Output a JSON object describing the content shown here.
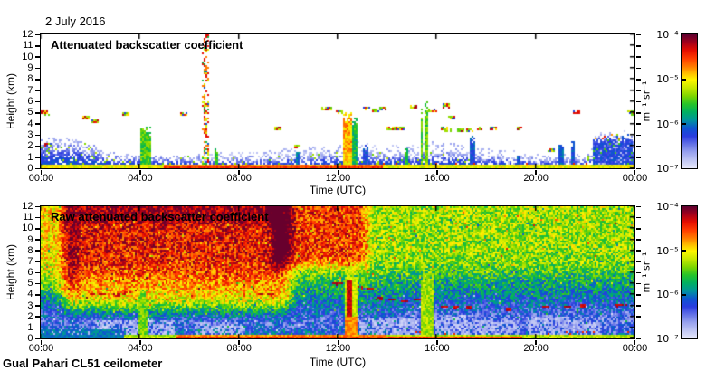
{
  "figure": {
    "date_label": "2 July 2016",
    "footer": "Gual Pahari CL51 ceilometer"
  },
  "chart_data": {
    "type": "heatmap",
    "x_axis": {
      "label": "Time (UTC)",
      "range_hours": [
        0,
        24
      ],
      "tick_labels": [
        "00:00",
        "04:00",
        "08:00",
        "12:00",
        "16:00",
        "20:00",
        "00:00"
      ]
    },
    "y_axis": {
      "label": "Height (km)",
      "range_km": [
        0,
        12
      ],
      "tick_labels": [
        "0",
        "1",
        "2",
        "3",
        "4",
        "5",
        "6",
        "7",
        "8",
        "9",
        "10",
        "11",
        "12"
      ]
    },
    "colorbar": {
      "unit": "m⁻¹ sr⁻¹",
      "scale": "log",
      "range": [
        "1e-7",
        "1e-4"
      ],
      "tick_labels": [
        "10⁻⁴",
        "10⁻⁵",
        "10⁻⁶",
        "10⁻⁷"
      ],
      "stops": [
        [
          0.0,
          "#e6e8fa"
        ],
        [
          0.06,
          "#c0c6f4"
        ],
        [
          0.12,
          "#98a2ee"
        ],
        [
          0.18,
          "#6472e6"
        ],
        [
          0.24,
          "#2a3ce0"
        ],
        [
          0.3,
          "#0d55d0"
        ],
        [
          0.36,
          "#00959d"
        ],
        [
          0.42,
          "#00b060"
        ],
        [
          0.48,
          "#27c428"
        ],
        [
          0.54,
          "#7ed600"
        ],
        [
          0.6,
          "#c8e800"
        ],
        [
          0.66,
          "#fef600"
        ],
        [
          0.7,
          "#ffc800"
        ],
        [
          0.76,
          "#ff7a00"
        ],
        [
          0.82,
          "#ff3c00"
        ],
        [
          0.88,
          "#e60d00"
        ],
        [
          0.94,
          "#a3001b"
        ],
        [
          1.0,
          "#5c0030"
        ]
      ]
    },
    "panels": [
      {
        "id": "attenuated",
        "title": "Attenuated backscatter coefficient",
        "style": "sparse",
        "seed": 42,
        "boundary_layer_top_km": [
          [
            0,
            2.35
          ],
          [
            1.3,
            2.25
          ],
          [
            2.2,
            1.8
          ],
          [
            2.6,
            1.3
          ],
          [
            3.6,
            1.05
          ],
          [
            5,
            1.0
          ],
          [
            6.4,
            0.95
          ],
          [
            7.5,
            0.9
          ],
          [
            9,
            0.95
          ],
          [
            10.2,
            1.15
          ],
          [
            11,
            1.25
          ],
          [
            12,
            1.45
          ],
          [
            13,
            1.5
          ],
          [
            13.6,
            1.3
          ],
          [
            14.6,
            1.35
          ],
          [
            15.8,
            1.5
          ],
          [
            16.8,
            1.45
          ],
          [
            17.8,
            1.1
          ],
          [
            19,
            1.0
          ],
          [
            20,
            0.8
          ],
          [
            21,
            0.85
          ],
          [
            22,
            0.9
          ],
          [
            22.4,
            1.3
          ],
          [
            22.6,
            2.7
          ],
          [
            23.5,
            2.9
          ],
          [
            24,
            2.6
          ]
        ],
        "surface": {
          "warm_interval_hours": [
            5.0,
            13.8
          ],
          "base_value": 0.6,
          "warm_value": 0.72
        },
        "plumes": [
          {
            "t0": 4.0,
            "t1": 4.45,
            "top_km": 3.6,
            "v": 0.5,
            "kind": "green"
          },
          {
            "t0": 12.25,
            "t1": 12.6,
            "top_km": 5.0,
            "v": 0.74,
            "kind": "warm"
          },
          {
            "t0": 12.6,
            "t1": 12.78,
            "top_km": 4.6,
            "v": 0.45,
            "kind": "green"
          },
          {
            "t0": 15.35,
            "t1": 15.44,
            "top_km": 5.5,
            "v": 0.5,
            "kind": "green"
          },
          {
            "t0": 15.5,
            "t1": 15.68,
            "top_km": 5.6,
            "v": 0.52,
            "kind": "green"
          },
          {
            "t0": 22.35,
            "t1": 23.95,
            "top_km": 2.85,
            "v": 0.26,
            "kind": "blue"
          }
        ],
        "rain_spike": {
          "t0": 6.48,
          "t1": 6.78,
          "core_start": 6.6,
          "top_km": 12
        },
        "columns": [
          [
            7.1,
            1.7,
            0.48
          ],
          [
            10.4,
            1.6,
            0.33
          ],
          [
            13.15,
            2.0,
            0.27
          ],
          [
            14.8,
            1.7,
            0.47
          ],
          [
            17.45,
            2.6,
            0.28
          ],
          [
            19.3,
            1.3,
            0.28
          ],
          [
            21.05,
            2.3,
            0.3
          ],
          [
            21.5,
            2.45,
            0.28
          ]
        ],
        "clouds": [
          [
            0.12,
            5.0
          ],
          [
            0.22,
            4.85
          ],
          [
            0.32,
            2.05
          ],
          [
            1.85,
            4.5
          ],
          [
            2.2,
            4.25
          ],
          [
            3.45,
            4.9
          ],
          [
            5.8,
            4.8
          ],
          [
            9.6,
            3.6
          ],
          [
            10.35,
            2.0
          ],
          [
            11.45,
            5.35
          ],
          [
            11.62,
            5.3
          ],
          [
            12.05,
            5.05
          ],
          [
            13.2,
            5.3
          ],
          [
            13.55,
            5.25
          ],
          [
            13.8,
            5.35
          ],
          [
            14.15,
            3.55
          ],
          [
            14.35,
            3.6
          ],
          [
            14.6,
            3.5
          ],
          [
            15.1,
            5.5
          ],
          [
            15.85,
            5.2,
            0.2
          ],
          [
            16.3,
            3.5
          ],
          [
            16.45,
            3.45
          ],
          [
            16.4,
            5.6
          ],
          [
            16.6,
            4.6
          ],
          [
            17.0,
            3.4
          ],
          [
            17.35,
            3.45
          ],
          [
            17.75,
            3.6
          ],
          [
            18.3,
            3.5
          ],
          [
            19.35,
            3.6
          ],
          [
            20.65,
            1.6
          ],
          [
            21.65,
            5.0
          ],
          [
            23.85,
            5.0
          ],
          [
            23.97,
            4.85
          ]
        ]
      },
      {
        "id": "raw",
        "title": "Raw attenuated backscatter coefficient",
        "style": "dense",
        "seed": 1337,
        "ambient_profile": [
          [
            0,
            0.5
          ],
          [
            0.4,
            0.3
          ],
          [
            0.8,
            0.24
          ],
          [
            1.5,
            0.22
          ],
          [
            2,
            0.25
          ],
          [
            3,
            0.31
          ],
          [
            4,
            0.38
          ],
          [
            5,
            0.45
          ],
          [
            6,
            0.51
          ],
          [
            7,
            0.545
          ],
          [
            8,
            0.56
          ],
          [
            9,
            0.565
          ],
          [
            12,
            0.575
          ]
        ],
        "hot_regions": [
          {
            "t0": 1.3,
            "t1": 9.7,
            "h0": 3.8,
            "h1": 12,
            "dv": 0.3,
            "tf": 0.8,
            "hf": 2.5
          },
          {
            "t0": 9.7,
            "t1": 12.85,
            "h0": 7.5,
            "h1": 12,
            "dv": 0.26,
            "tf": 0.7,
            "hf": 2.0
          },
          {
            "t0": 2.0,
            "t1": 9.3,
            "h0": 10.9,
            "h1": 12,
            "dv": 0.08,
            "tf": 1.0,
            "hf": 0.8
          },
          {
            "t0": 0.0,
            "t1": 1.3,
            "h0": 5.0,
            "h1": 12,
            "dv": 0.1,
            "tf": 0.5,
            "hf": 2.0
          }
        ],
        "cooling_after_hours": 13.5,
        "white_patches": [
          [
            2.1,
            5.4,
            0.35,
            1.6
          ],
          [
            6.2,
            8.3,
            0.35,
            1.4
          ],
          [
            12.9,
            15.3,
            0.35,
            1.8
          ],
          [
            15.95,
            17.4,
            0.35,
            2.1
          ],
          [
            17.5,
            19.3,
            0.35,
            1.6
          ],
          [
            19.7,
            21.4,
            0.35,
            1.9
          ],
          [
            21.5,
            22.7,
            0.35,
            1.6
          ]
        ],
        "plumes": [
          {
            "t0": 3.95,
            "t1": 4.35,
            "top_km": 4.3,
            "v": 0.53,
            "kind": "green"
          },
          {
            "t0": 12.28,
            "t1": 12.78,
            "top_km": 6.5,
            "v": 0.8,
            "kind": "warm2"
          },
          {
            "t0": 15.4,
            "t1": 15.85,
            "top_km": 6.2,
            "v": 0.57,
            "kind": "green"
          }
        ],
        "aerosol_dashes": [
          [
            2.1,
            4.0
          ],
          [
            2.5,
            4.05
          ],
          [
            3.1,
            3.9
          ],
          [
            3.4,
            4.1
          ],
          [
            8.9,
            4.0
          ],
          [
            9.3,
            3.9
          ],
          [
            11.9,
            4.9
          ],
          [
            12.1,
            5.0
          ],
          [
            12.9,
            4.6
          ],
          [
            13.3,
            4.5
          ],
          [
            13.7,
            3.6
          ],
          [
            14.2,
            3.5
          ],
          [
            14.7,
            3.4
          ],
          [
            15.2,
            3.5
          ],
          [
            16.3,
            2.9
          ],
          [
            16.8,
            2.8
          ],
          [
            17.3,
            2.8
          ],
          [
            18.9,
            2.6
          ],
          [
            20.4,
            2.9
          ],
          [
            21.3,
            2.9
          ],
          [
            21.9,
            3.0
          ],
          [
            23.3,
            3.0
          ],
          [
            23.55,
            3.05
          ]
        ],
        "surface": {
          "warm_interval_hours": [
            5.5,
            14.0
          ],
          "yellow_core_until": 19.5,
          "dark_blue_until": 3.3
        }
      }
    ]
  }
}
